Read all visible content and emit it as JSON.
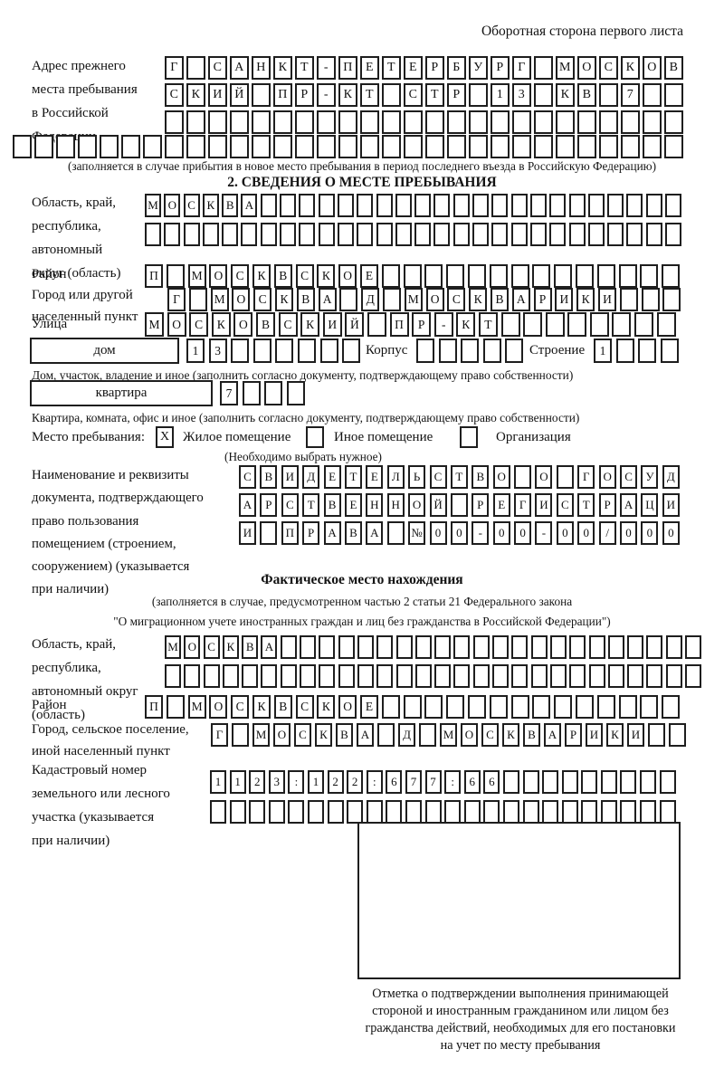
{
  "page": {
    "header_note": "Оборотная сторона первого листа"
  },
  "prev_address": {
    "label_lines": [
      "Адрес прежнего",
      "места пребывания",
      "в Российской",
      "Федерации"
    ],
    "row1": "Г САНКТ-ПЕТЕРБУРГ МОСКОВ",
    "row2": "СКИЙ ПР-КТ СТР 13 КВ 7",
    "row3": "",
    "row4": "",
    "note": "(заполняется в случае прибытия в новое место пребывания в период последнего въезда в Российскую Федерацию)"
  },
  "section2": {
    "title": "2. СВЕДЕНИЯ О МЕСТЕ ПРЕБЫВАНИЯ",
    "oblast": {
      "label_lines": [
        "Область, край,",
        "республика,",
        "автономный",
        "округ (область)"
      ],
      "row1": "МОСКВА",
      "row2": ""
    },
    "raion": {
      "label": "Район",
      "row": "П МОСКВСКОЕ"
    },
    "gorod": {
      "label_lines": [
        "Город или другой",
        "населенный пункт"
      ],
      "row": "Г МОСКВА Д МОСКВАРИКИ"
    },
    "ulitsa": {
      "label": "Улица",
      "row": "МОСКОВСКИЙ ПР-КТ"
    },
    "dom": {
      "box_label": "дом",
      "cells": "13",
      "korpus_label": "Корпус",
      "korpus_cells": "",
      "stroenie_label": "Строение",
      "stroenie_cells": "1"
    },
    "dom_note": "Дом, участок, владение и иное (заполнить согласно документу, подтверждающему право собственности)",
    "kvartira": {
      "box_label": "квартира",
      "cells": "7"
    },
    "kvartira_note": "Квартира, комната, офис и иное (заполнить согласно документу, подтверждающему право собственности)",
    "mesto": {
      "label": "Место пребывания:",
      "options": [
        {
          "label": "Жилое помещение",
          "mark": "X"
        },
        {
          "label": "Иное помещение",
          "mark": ""
        },
        {
          "label": "Организация",
          "mark": ""
        }
      ],
      "note": "(Необходимо выбрать нужное)"
    },
    "doc": {
      "label_lines": [
        "Наименование и реквизиты",
        "документа, подтверждающего",
        "право пользования",
        "помещением (строением,",
        "сооружением) (указывается",
        "при наличии)"
      ],
      "row1": "СВИДЕТЕЛЬСТВО О ГОСУД",
      "row2": "АРСТВЕННОЙ РЕГИСТРАЦИ",
      "row3": "И ПРАВА №00-00-00/000"
    }
  },
  "fact": {
    "title": "Фактическое место нахождения",
    "note1": "(заполняется в случае, предусмотренном частью 2 статьи 21 Федерального закона",
    "note2": "\"О миграционном учете иностранных граждан и лиц без гражданства в Российской Федерации\")",
    "oblast": {
      "label_lines": [
        "Область, край,",
        "республика,",
        "автономный округ",
        "(область)"
      ],
      "row1": "МОСКВА",
      "row2": ""
    },
    "raion": {
      "label": "Район",
      "row": "П МОСКВСКОЕ"
    },
    "gorod": {
      "label_lines": [
        "Город, сельское поселение,",
        "иной населенный пункт"
      ],
      "row": "Г МОСКВА Д МОСКВАРИКИ"
    },
    "kadastr": {
      "label_lines": [
        "Кадастровый номер",
        "земельного или лесного",
        "участка (указывается",
        "при наличии)"
      ],
      "row1": "1123:122:677:66",
      "row2": ""
    }
  },
  "stamp": {
    "caption_lines": [
      "Отметка о подтверждении выполнения принимающей",
      "стороной и иностранным гражданином или лицом без",
      "гражданства действий, необходимых для его постановки",
      "на учет по месту пребывания"
    ]
  }
}
